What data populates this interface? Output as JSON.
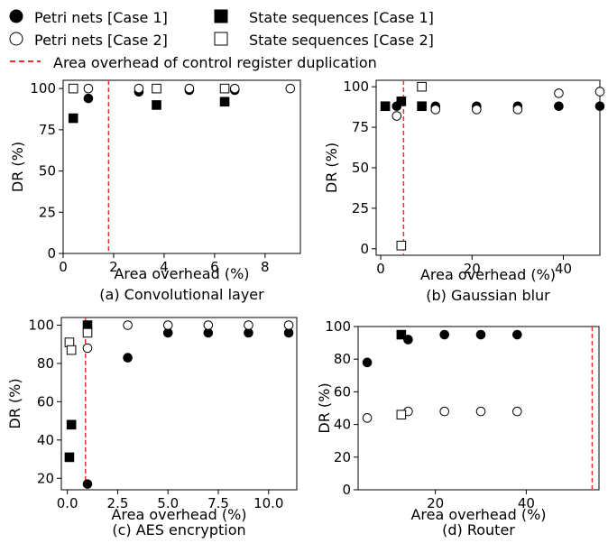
{
  "legend": {
    "items": [
      {
        "label": "Petri nets [Case 1]",
        "marker": "filled-circle"
      },
      {
        "label": "State sequences [Case 1]",
        "marker": "filled-square"
      },
      {
        "label": "Petri nets [Case 2]",
        "marker": "open-circle"
      },
      {
        "label": "State sequences [Case 2]",
        "marker": "open-square"
      },
      {
        "label": "Area overhead of control register duplication",
        "marker": "red-dashed-line"
      }
    ]
  },
  "colors": {
    "marker": "#000000",
    "vline": "#e8332a"
  },
  "chart_data": [
    {
      "type": "scatter",
      "caption": "(a) Convolutional layer",
      "xlabel": "Area overhead (%)",
      "ylabel": "DR (%)",
      "xlim": [
        0,
        9.4
      ],
      "ylim": [
        0,
        105
      ],
      "xticks": [
        0,
        2,
        4,
        6,
        8
      ],
      "yticks": [
        0,
        25,
        50,
        75,
        100
      ],
      "vline": 1.8,
      "series": [
        {
          "name": "Petri nets [Case 1]",
          "marker": "filled-circle",
          "points": [
            [
              1.0,
              94
            ],
            [
              3.0,
              98
            ],
            [
              5.0,
              99
            ],
            [
              6.8,
              99
            ]
          ]
        },
        {
          "name": "Petri nets [Case 2]",
          "marker": "open-circle",
          "points": [
            [
              1.0,
              100
            ],
            [
              3.0,
              100
            ],
            [
              5.0,
              100
            ],
            [
              6.8,
              100
            ],
            [
              9.0,
              100
            ]
          ]
        },
        {
          "name": "State sequences [Case 1]",
          "marker": "filled-square",
          "points": [
            [
              0.4,
              82
            ],
            [
              3.7,
              90
            ],
            [
              6.4,
              92
            ]
          ]
        },
        {
          "name": "State sequences [Case 2]",
          "marker": "open-square",
          "points": [
            [
              0.4,
              100
            ],
            [
              3.7,
              100
            ],
            [
              6.4,
              100
            ]
          ]
        }
      ]
    },
    {
      "type": "scatter",
      "caption": "(b) Gaussian blur",
      "xlabel": "Area overhead (%)",
      "ylabel": "DR (%)",
      "xlim": [
        -1,
        48
      ],
      "ylim": [
        -4,
        104
      ],
      "xticks": [
        0,
        20,
        40
      ],
      "yticks": [
        0,
        25,
        50,
        75,
        100
      ],
      "vline": 5.0,
      "series": [
        {
          "name": "Petri nets [Case 1]",
          "marker": "filled-circle",
          "points": [
            [
              3.5,
              88
            ],
            [
              12,
              88
            ],
            [
              21,
              88
            ],
            [
              30,
              88
            ],
            [
              39,
              88
            ],
            [
              48,
              88
            ]
          ]
        },
        {
          "name": "Petri nets [Case 2]",
          "marker": "open-circle",
          "points": [
            [
              3.5,
              82
            ],
            [
              12,
              86
            ],
            [
              21,
              86
            ],
            [
              30,
              86
            ],
            [
              39,
              96
            ],
            [
              48,
              97
            ]
          ]
        },
        {
          "name": "State sequences [Case 1]",
          "marker": "filled-square",
          "points": [
            [
              1,
              88
            ],
            [
              4.5,
              91
            ],
            [
              9,
              88
            ]
          ]
        },
        {
          "name": "State sequences [Case 2]",
          "marker": "open-square",
          "points": [
            [
              4.5,
              2
            ],
            [
              9,
              100
            ]
          ]
        }
      ]
    },
    {
      "type": "scatter",
      "caption": "(c) AES encryption",
      "xlabel": "Area overhead (%)",
      "ylabel": "DR (%)",
      "xlim": [
        -0.3,
        11.4
      ],
      "ylim": [
        14,
        104
      ],
      "xticks": [
        0.0,
        2.5,
        5.0,
        7.5,
        10.0
      ],
      "ytick_labels": [
        "20",
        "40",
        "60",
        "80",
        "100"
      ],
      "yticks": [
        20,
        40,
        60,
        80,
        100
      ],
      "vline": 0.9,
      "series": [
        {
          "name": "Petri nets [Case 1]",
          "marker": "filled-circle",
          "points": [
            [
              1.0,
              17
            ],
            [
              3.0,
              83
            ],
            [
              5.0,
              96
            ],
            [
              7.0,
              96
            ],
            [
              9.0,
              96
            ],
            [
              11.0,
              96
            ]
          ]
        },
        {
          "name": "Petri nets [Case 2]",
          "marker": "open-circle",
          "points": [
            [
              1.0,
              88
            ],
            [
              3.0,
              100
            ],
            [
              5.0,
              100
            ],
            [
              7.0,
              100
            ],
            [
              9.0,
              100
            ],
            [
              11.0,
              100
            ]
          ]
        },
        {
          "name": "State sequences [Case 1]",
          "marker": "filled-square",
          "points": [
            [
              0.1,
              31
            ],
            [
              0.2,
              48
            ],
            [
              1.0,
              100
            ]
          ]
        },
        {
          "name": "State sequences [Case 2]",
          "marker": "open-square",
          "points": [
            [
              0.1,
              91
            ],
            [
              0.2,
              87
            ],
            [
              1.0,
              96
            ]
          ]
        }
      ]
    },
    {
      "type": "scatter",
      "caption": "(d) Router",
      "xlabel": "Area overhead (%)",
      "ylabel": "DR (%)",
      "xlim": [
        3,
        56
      ],
      "ylim": [
        0,
        100
      ],
      "xticks": [
        20,
        40
      ],
      "yticks": [
        0,
        20,
        40,
        60,
        80,
        100
      ],
      "vline": 54.5,
      "series": [
        {
          "name": "Petri nets [Case 1]",
          "marker": "filled-circle",
          "points": [
            [
              5,
              78
            ],
            [
              14,
              92
            ],
            [
              22,
              95
            ],
            [
              30,
              95
            ],
            [
              38,
              95
            ]
          ]
        },
        {
          "name": "Petri nets [Case 2]",
          "marker": "open-circle",
          "points": [
            [
              5,
              44
            ],
            [
              14,
              48
            ],
            [
              22,
              48
            ],
            [
              30,
              48
            ],
            [
              38,
              48
            ]
          ]
        },
        {
          "name": "State sequences [Case 1]",
          "marker": "filled-square",
          "points": [
            [
              12.5,
              95
            ]
          ]
        },
        {
          "name": "State sequences [Case 2]",
          "marker": "open-square",
          "points": [
            [
              12.5,
              46
            ]
          ]
        }
      ]
    }
  ]
}
